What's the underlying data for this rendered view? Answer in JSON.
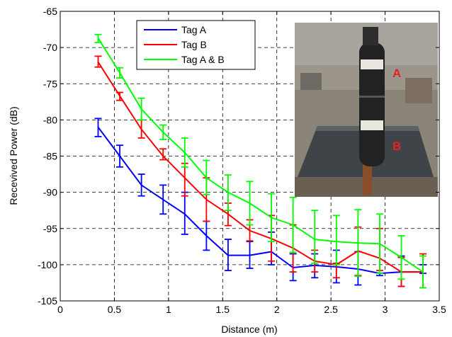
{
  "chart_data": {
    "type": "line",
    "xlabel": "Distance (m)",
    "ylabel": "Recevived Power (dB)",
    "xlim": [
      0,
      3.5
    ],
    "ylim": [
      -105,
      -65
    ],
    "xticks": [
      0,
      0.5,
      1,
      1.5,
      2,
      2.5,
      3,
      3.5
    ],
    "xtick_labels": [
      "0",
      "0.5",
      "1",
      "1.5",
      "2",
      "2.5",
      "3",
      "3.5"
    ],
    "yticks": [
      -105,
      -100,
      -95,
      -90,
      -85,
      -80,
      -75,
      -70,
      -65
    ],
    "ytick_labels": [
      "-105",
      "-100",
      "-95",
      "-90",
      "-85",
      "-80",
      "-75",
      "-70",
      "-65"
    ],
    "grid": true,
    "legend_position": "top-center",
    "x": [
      0.35,
      0.55,
      0.75,
      0.95,
      1.15,
      1.35,
      1.55,
      1.75,
      1.95,
      2.15,
      2.35,
      2.55,
      2.75,
      2.95,
      3.15,
      3.35
    ],
    "series": [
      {
        "name": "Tag A",
        "color": "#0000ff",
        "values": [
          -81,
          -85,
          -89,
          -91,
          -93,
          -96,
          -98.7,
          -98.7,
          -98.2,
          -100.4,
          -100.1,
          -100.3,
          -100.6,
          -101.2,
          -101,
          -101
        ],
        "err_low": [
          -82.3,
          -86.5,
          -90.5,
          -93,
          -95.8,
          -98,
          -100.8,
          -100.5,
          -100,
          -102.2,
          -101.8,
          -102.5,
          -102.8,
          -101.5,
          -103,
          -101.2
        ],
        "err_high": [
          -79.8,
          -83.5,
          -87.5,
          -89,
          -90,
          -94,
          -96.5,
          -96.8,
          -95.5,
          -98.5,
          -98.5,
          -98,
          -98.2,
          -101.2,
          -98.8,
          -100
        ]
      },
      {
        "name": "Tag B",
        "color": "#ff0000",
        "values": [
          -72,
          -76.7,
          -81.3,
          -85,
          -88,
          -91,
          -93,
          -95.3,
          -96.4,
          -97.7,
          -99.5,
          -100,
          -98.1,
          -99.1,
          -101,
          -101
        ],
        "err_low": [
          -72.7,
          -77.3,
          -82.5,
          -85.5,
          -90.5,
          -94,
          -94.6,
          -96.7,
          -99.5,
          -101,
          -101,
          -101.8,
          -101.5,
          -100.8,
          -103,
          -103.2
        ],
        "err_high": [
          -71.2,
          -76.2,
          -80,
          -84,
          -86,
          -88,
          -91.5,
          -93.8,
          -93.2,
          -94.5,
          -98,
          -99.8,
          -94.8,
          -95,
          -99,
          -98.5
        ]
      },
      {
        "name": "Tag A & B",
        "color": "#00ff00",
        "values": [
          -68.7,
          -73.5,
          -78.5,
          -81.7,
          -84.5,
          -88,
          -90,
          -91.5,
          -93.5,
          -94.5,
          -96.5,
          -96.8,
          -97,
          -97.1,
          -99,
          -101
        ],
        "err_low": [
          -69.3,
          -74.2,
          -80,
          -82.7,
          -86.5,
          -90.3,
          -92.5,
          -94.5,
          -96.8,
          -98.3,
          -99.8,
          -100,
          -101.6,
          -101.2,
          -102,
          -103.2
        ],
        "err_high": [
          -68.2,
          -72.8,
          -77,
          -80.7,
          -82.5,
          -85.6,
          -87.6,
          -88.5,
          -90.2,
          -90.7,
          -92.5,
          -93.2,
          -92.4,
          -93,
          -96,
          -98.8
        ]
      }
    ],
    "inset_photo": {
      "labels": [
        "A",
        "B"
      ],
      "label_color": "#e52222"
    }
  }
}
